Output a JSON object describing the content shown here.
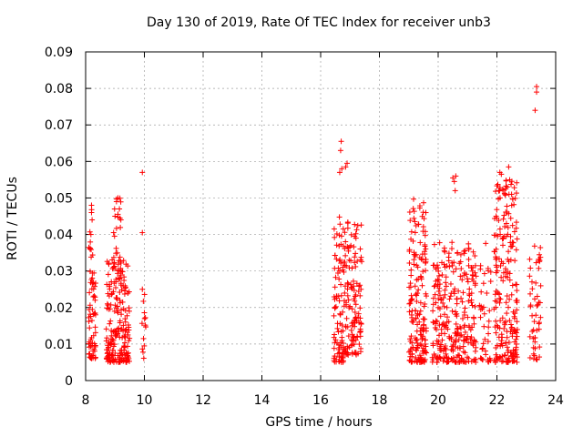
{
  "chart_data": {
    "type": "scatter",
    "title": "Day 130 of 2019, Rate Of TEC Index for receiver unb3",
    "xlabel": "GPS time / hours",
    "ylabel": "ROTI / TECUs",
    "xlim": [
      8,
      24
    ],
    "ylim": [
      0,
      0.09
    ],
    "x_ticks": [
      "8",
      "10",
      "12",
      "14",
      "16",
      "18",
      "20",
      "22",
      "24"
    ],
    "y_ticks": [
      "0",
      "0.01",
      "0.02",
      "0.03",
      "0.04",
      "0.05",
      "0.06",
      "0.07",
      "0.08",
      "0.09"
    ],
    "grid": true,
    "marker": "+",
    "color": "#ff0000",
    "clusters": [
      {
        "x_range": [
          8.1,
          8.35
        ],
        "y_range": [
          0.006,
          0.03
        ],
        "n": 60
      },
      {
        "x_range": [
          8.1,
          8.3
        ],
        "y_range": [
          0.03,
          0.048
        ],
        "n": 8
      },
      {
        "x_range": [
          8.7,
          9.5
        ],
        "y_range": [
          0.005,
          0.033
        ],
        "n": 200
      },
      {
        "x_range": [
          8.9,
          9.2
        ],
        "y_range": [
          0.03,
          0.05
        ],
        "n": 25
      },
      {
        "x_range": [
          9.9,
          10.05
        ],
        "y_range": [
          0.005,
          0.025
        ],
        "n": 14
      },
      {
        "x_range": [
          16.45,
          16.8
        ],
        "y_range": [
          0.005,
          0.047
        ],
        "n": 90
      },
      {
        "x_range": [
          16.8,
          17.4
        ],
        "y_range": [
          0.007,
          0.045
        ],
        "n": 130
      },
      {
        "x_range": [
          19.0,
          19.6
        ],
        "y_range": [
          0.005,
          0.05
        ],
        "n": 180
      },
      {
        "x_range": [
          19.8,
          21.3
        ],
        "y_range": [
          0.005,
          0.038
        ],
        "n": 280
      },
      {
        "x_range": [
          21.4,
          21.8
        ],
        "y_range": [
          0.005,
          0.038
        ],
        "n": 40
      },
      {
        "x_range": [
          21.9,
          22.7
        ],
        "y_range": [
          0.005,
          0.055
        ],
        "n": 220
      },
      {
        "x_range": [
          23.1,
          23.5
        ],
        "y_range": [
          0.005,
          0.038
        ],
        "n": 50
      }
    ],
    "points": [
      [
        8.2,
        0.048
      ],
      [
        8.2,
        0.046
      ],
      [
        8.22,
        0.044
      ],
      [
        8.18,
        0.04
      ],
      [
        8.15,
        0.036
      ],
      [
        9.1,
        0.05
      ],
      [
        9.05,
        0.049
      ],
      [
        9.15,
        0.047
      ],
      [
        9.2,
        0.044
      ],
      [
        9.0,
        0.045
      ],
      [
        9.93,
        0.057
      ],
      [
        9.93,
        0.0405
      ],
      [
        9.93,
        0.025
      ],
      [
        16.7,
        0.0655
      ],
      [
        16.68,
        0.063
      ],
      [
        16.72,
        0.058
      ],
      [
        16.65,
        0.057
      ],
      [
        16.9,
        0.0595
      ],
      [
        16.85,
        0.0585
      ],
      [
        20.5,
        0.0555
      ],
      [
        20.55,
        0.0545
      ],
      [
        20.58,
        0.052
      ],
      [
        20.6,
        0.056
      ],
      [
        22.1,
        0.057
      ],
      [
        22.15,
        0.0565
      ],
      [
        22.4,
        0.0585
      ],
      [
        22.35,
        0.053
      ],
      [
        22.5,
        0.051
      ],
      [
        23.35,
        0.0805
      ],
      [
        23.35,
        0.079
      ],
      [
        23.3,
        0.074
      ]
    ]
  }
}
